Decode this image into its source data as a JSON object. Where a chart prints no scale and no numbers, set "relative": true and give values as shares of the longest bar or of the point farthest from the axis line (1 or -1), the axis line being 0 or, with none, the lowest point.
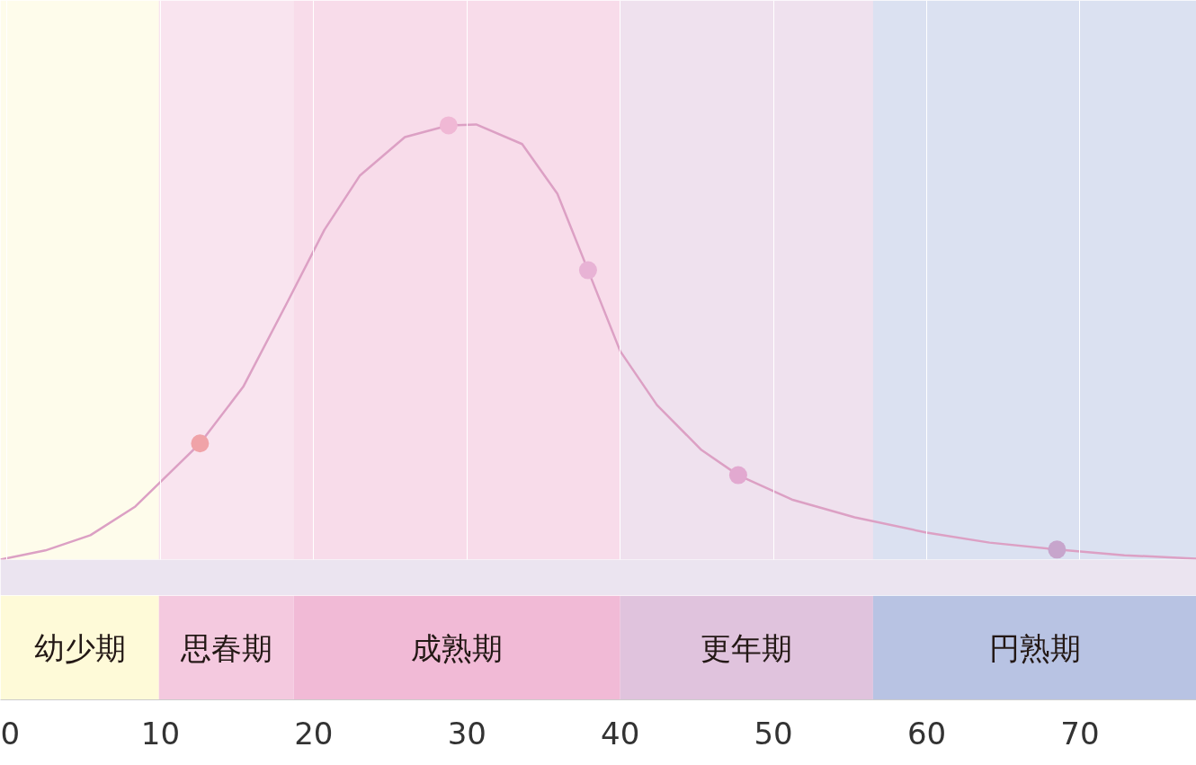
{
  "chart_data": {
    "type": "line",
    "relative": true,
    "xlim": [
      -0.44,
      77.6
    ],
    "xticks": [
      0,
      10,
      20,
      30,
      40,
      50,
      60,
      70
    ],
    "grid": "x",
    "series": [
      {
        "type": "line",
        "color": "#dca0c4",
        "x": [
          -0.44,
          2.49,
          5.43,
          8.36,
          12.58,
          15.4,
          18.3,
          20.7,
          23.0,
          25.95,
          28.8,
          30.6,
          33.6,
          35.9,
          37.9,
          40.0,
          42.4,
          45.3,
          47.7,
          51.2,
          55.3,
          60.0,
          64.1,
          68.5,
          72.9,
          77.6
        ],
        "values": [
          0,
          0.021,
          0.056,
          0.122,
          0.267,
          0.397,
          0.593,
          0.758,
          0.882,
          0.971,
          0.998,
          1.0,
          0.955,
          0.841,
          0.665,
          0.479,
          0.355,
          0.252,
          0.194,
          0.138,
          0.097,
          0.062,
          0.039,
          0.023,
          0.01,
          0.002
        ]
      },
      {
        "type": "scatter",
        "marker": "circle",
        "colors": [
          "#f0a3a8",
          "#f0b8d5",
          "#e8b3d5",
          "#e2a9d0",
          "#c7a5cc"
        ],
        "x": [
          12.58,
          28.8,
          37.9,
          47.7,
          68.5
        ],
        "values": [
          0.267,
          0.998,
          0.665,
          0.194,
          0.023
        ]
      }
    ],
    "bands": [
      {
        "axis": "x",
        "from": -0.44,
        "to": 9.9,
        "label": "幼少期",
        "color": "#fefad8"
      },
      {
        "axis": "x",
        "from": 9.9,
        "to": 18.7,
        "label": "思春期",
        "color": "#f4c9df"
      },
      {
        "axis": "x",
        "from": 18.7,
        "to": 40.0,
        "label": "成熟期",
        "color": "#f1bad6"
      },
      {
        "axis": "x",
        "from": 40.0,
        "to": 56.5,
        "label": "更年期",
        "color": "#e0c3dd"
      },
      {
        "axis": "x",
        "from": 56.5,
        "to": 77.6,
        "label": "円熟期",
        "color": "#b8c3e3"
      }
    ]
  }
}
